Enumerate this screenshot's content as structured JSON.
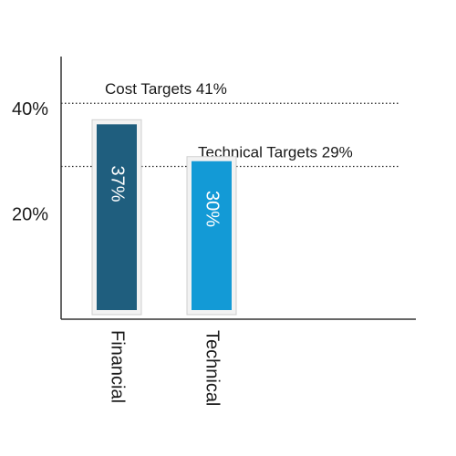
{
  "chart_data": {
    "type": "bar",
    "categories": [
      "Financial",
      "Technical"
    ],
    "values": [
      37,
      30
    ],
    "value_labels": [
      "37%",
      "30%"
    ],
    "ylim": [
      0,
      50
    ],
    "yticks": [
      {
        "value": 20,
        "label": "20%"
      },
      {
        "value": 40,
        "label": "40%"
      }
    ],
    "targets": [
      {
        "name": "Cost Targets",
        "value": 41,
        "label": "Cost Targets 41%"
      },
      {
        "name": "Technical Targets",
        "value": 29,
        "label": "Technical Targets 29%"
      }
    ],
    "colors": {
      "bars": [
        "#1f5e7e",
        "#139ad6"
      ],
      "axis": "#333333",
      "target_line": "#222222"
    },
    "grid": false,
    "title": "",
    "xlabel": "",
    "ylabel": ""
  }
}
